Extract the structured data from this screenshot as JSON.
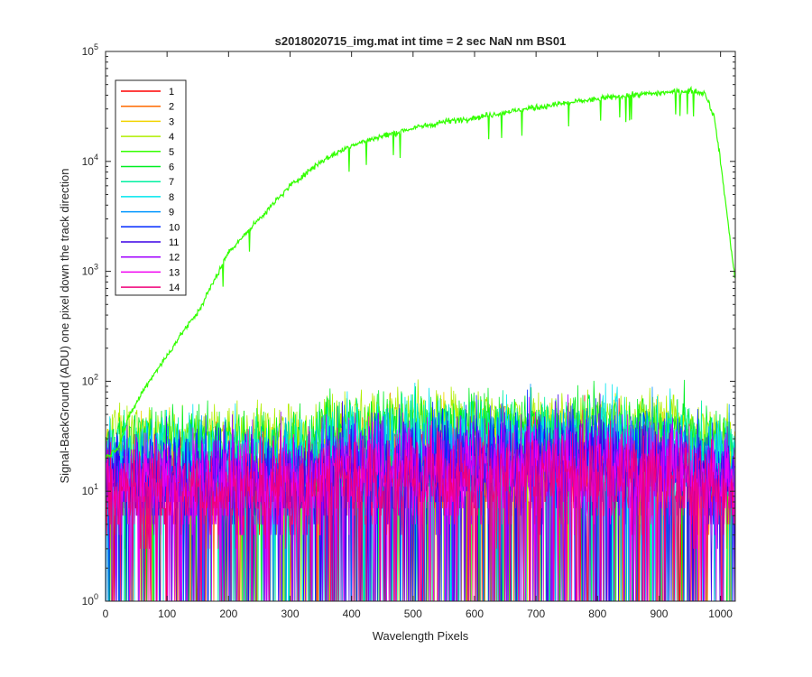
{
  "chart_data": {
    "type": "line",
    "title": "s2018020715_img.mat int time = 2 sec  NaN nm BS01",
    "xlabel": "Wavelength Pixels",
    "ylabel": "Signal-BackGround (ADU) one pixel down the track direction",
    "xlim": [
      0,
      1024
    ],
    "ylim": [
      1,
      100000
    ],
    "yscale": "log",
    "x_ticks": [
      "0",
      "100",
      "200",
      "300",
      "400",
      "500",
      "600",
      "700",
      "800",
      "900",
      "1000"
    ],
    "y_tick_exponents": [
      "0",
      "1",
      "2",
      "3",
      "4",
      "5"
    ],
    "y_tick_base": "10",
    "grid": false,
    "legend_position": "top-left",
    "n_points": 1024,
    "series": [
      {
        "name": "1",
        "color": "#ff0000",
        "level": 12,
        "spread": 0.45
      },
      {
        "name": "2",
        "color": "#ff6a00",
        "level": 12,
        "spread": 0.45
      },
      {
        "name": "3",
        "color": "#f2d400",
        "level": 20,
        "spread": 0.35
      },
      {
        "name": "4",
        "color": "#b0ee00",
        "level": 35,
        "spread": 0.25
      },
      {
        "name": "5",
        "color": "#33ff00",
        "level": 35,
        "spread": 0.2,
        "envelope": [
          [
            0,
            20
          ],
          [
            20,
            25
          ],
          [
            40,
            50
          ],
          [
            60,
            80
          ],
          [
            80,
            120
          ],
          [
            100,
            170
          ],
          [
            125,
            280
          ],
          [
            150,
            420
          ],
          [
            170,
            700
          ],
          [
            200,
            1500
          ],
          [
            250,
            3000
          ],
          [
            300,
            6000
          ],
          [
            350,
            10000
          ],
          [
            400,
            14000
          ],
          [
            450,
            17000
          ],
          [
            500,
            20000
          ],
          [
            550,
            23000
          ],
          [
            600,
            25000
          ],
          [
            650,
            28000
          ],
          [
            700,
            31000
          ],
          [
            750,
            34000
          ],
          [
            800,
            37000
          ],
          [
            850,
            40000
          ],
          [
            900,
            42000
          ],
          [
            950,
            44000
          ],
          [
            975,
            42000
          ],
          [
            990,
            25000
          ],
          [
            1000,
            10000
          ],
          [
            1010,
            3500
          ],
          [
            1024,
            800
          ]
        ]
      },
      {
        "name": "6",
        "color": "#00ee22",
        "level": 30,
        "spread": 0.3
      },
      {
        "name": "7",
        "color": "#00f0a0",
        "level": 22,
        "spread": 0.35
      },
      {
        "name": "8",
        "color": "#00e6ee",
        "level": 20,
        "spread": 0.4
      },
      {
        "name": "9",
        "color": "#0096ff",
        "level": 15,
        "spread": 0.45
      },
      {
        "name": "10",
        "color": "#0028ff",
        "level": 14,
        "spread": 0.45
      },
      {
        "name": "11",
        "color": "#3c00e6",
        "level": 13,
        "spread": 0.45
      },
      {
        "name": "12",
        "color": "#a000ff",
        "level": 12,
        "spread": 0.45
      },
      {
        "name": "13",
        "color": "#f000f0",
        "level": 11,
        "spread": 0.45
      },
      {
        "name": "14",
        "color": "#f0007a",
        "level": 10,
        "spread": 0.45
      }
    ]
  }
}
